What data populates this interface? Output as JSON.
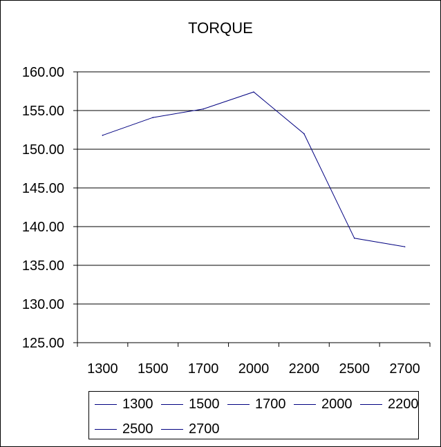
{
  "chart_data": {
    "type": "line",
    "title": "TORQUE",
    "xlabel": "",
    "ylabel": "",
    "categories": [
      "1300",
      "1500",
      "1700",
      "2000",
      "2200",
      "2500",
      "2700"
    ],
    "series": [
      {
        "values": [
          151.8,
          154.1,
          155.2,
          157.4,
          152.0,
          138.5,
          137.4
        ]
      }
    ],
    "ylim": [
      125,
      160
    ],
    "yticks": [
      "125.00",
      "130.00",
      "135.00",
      "140.00",
      "145.00",
      "150.00",
      "155.00",
      "160.00"
    ],
    "grid": true,
    "legend": {
      "placement": "bottom",
      "entries": [
        "1300",
        "1500",
        "1700",
        "2000",
        "2200",
        "2500",
        "2700"
      ]
    },
    "colors": {
      "line": "#000080",
      "grid": "#000000",
      "axis": "#000000"
    }
  }
}
